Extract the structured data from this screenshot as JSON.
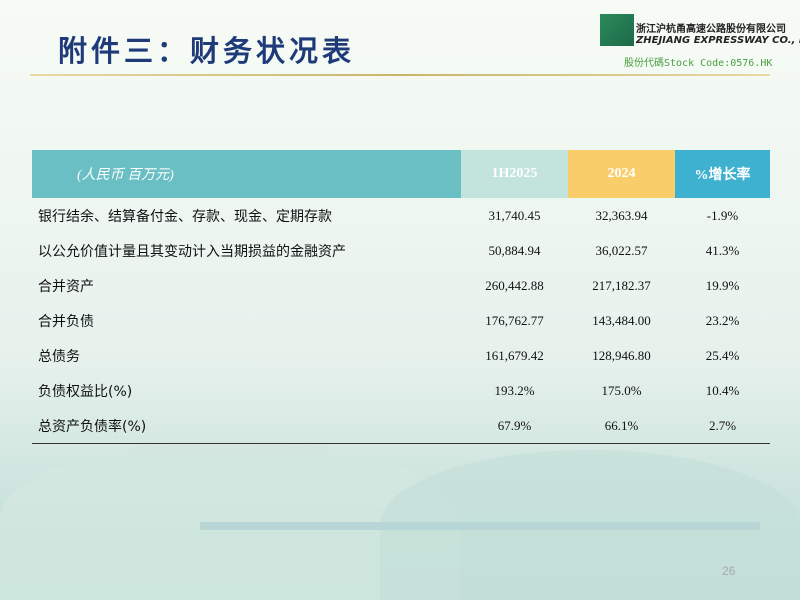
{
  "slide": {
    "title": "附件三：财务状况表",
    "page_number": "26"
  },
  "logo": {
    "company_cn": "浙江沪杭甬高速公路股份有限公司",
    "company_en": "ZHEJIANG EXPRESSWAY CO., LTD.",
    "stock_code": "股份代碼Stock Code:0576.HK"
  },
  "table": {
    "headers": [
      "(人民币 百万元)",
      "1H2025",
      "2024",
      "%增长率"
    ],
    "header_colors": [
      "#69bfc4",
      "#c3e4dc",
      "#f9cd6a",
      "#3fb1d0"
    ],
    "rows": [
      [
        "银行结余、结算备付金、存款、现金、定期存款",
        "31,740.45",
        "32,363.94",
        "-1.9%"
      ],
      [
        "以公允价值计量且其变动计入当期损益的金融资产",
        "50,884.94",
        "36,022.57",
        "41.3%"
      ],
      [
        "合并资产",
        "260,442.88",
        "217,182.37",
        "19.9%"
      ],
      [
        "合并负债",
        "176,762.77",
        "143,484.00",
        "23.2%"
      ],
      [
        "总债务",
        "161,679.42",
        "128,946.80",
        "25.4%"
      ],
      [
        "负债权益比(%)",
        "193.2%",
        "175.0%",
        "10.4%"
      ],
      [
        "总资产负债率(%)",
        "67.9%",
        "66.1%",
        "2.7%"
      ]
    ]
  }
}
